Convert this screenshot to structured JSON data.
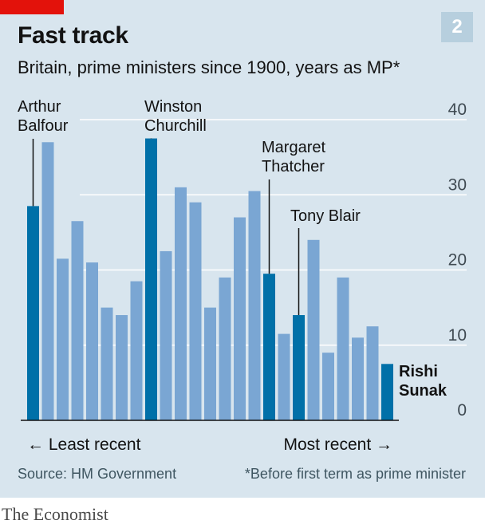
{
  "header": {
    "title": "Fast track",
    "subtitle": "Britain, prime ministers since 1900, years as MP*",
    "badge": "2"
  },
  "footer": {
    "source": "Source: HM Government",
    "footnote": "*Before first term as prime minister"
  },
  "brand": "The Economist",
  "colors": {
    "background": "#d8e5ee",
    "bar": "#7aa6d3",
    "highlight_bar": "#0070a8",
    "gridline": "#ffffff",
    "brand_red": "#e3120b",
    "badge": "#b7cfde"
  },
  "chart_data": {
    "type": "bar",
    "title": "Fast track",
    "subtitle": "Britain, prime ministers since 1900, years as MP*",
    "xlabel_left": "← Least recent",
    "xlabel_right": "Most recent →",
    "ylim": [
      0,
      40
    ],
    "yticks": [
      0,
      10,
      20,
      30,
      40
    ],
    "grid": true,
    "y_axis_position": "right",
    "values": [
      28.5,
      37,
      21.5,
      26.5,
      21,
      15,
      14,
      18.5,
      37.5,
      22.5,
      31,
      29,
      15,
      19,
      27,
      30.5,
      19.5,
      11.5,
      14,
      24,
      9,
      19,
      11,
      12.5,
      7.5
    ],
    "highlighted": [
      true,
      false,
      false,
      false,
      false,
      false,
      false,
      false,
      true,
      false,
      false,
      false,
      false,
      false,
      false,
      false,
      true,
      false,
      true,
      false,
      false,
      false,
      false,
      false,
      true
    ],
    "annotations": [
      {
        "index": 0,
        "lines": [
          "Arthur",
          "Balfour"
        ]
      },
      {
        "index": 8,
        "lines": [
          "Winston",
          "Churchill"
        ]
      },
      {
        "index": 16,
        "lines": [
          "Margaret",
          "Thatcher"
        ]
      },
      {
        "index": 18,
        "lines": [
          "Tony Blair"
        ]
      },
      {
        "index": 24,
        "lines": [
          "Rishi",
          "Sunak"
        ],
        "bold": true
      }
    ]
  }
}
